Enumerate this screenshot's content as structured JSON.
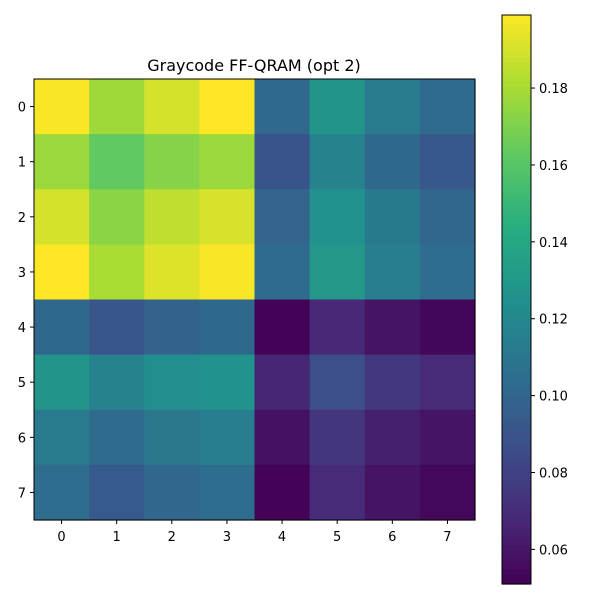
{
  "chart_data": {
    "type": "heatmap",
    "title": "Graycode FF-QRAM (opt 2)",
    "xlabel": "",
    "ylabel": "",
    "x_ticks": [
      "0",
      "1",
      "2",
      "3",
      "4",
      "5",
      "6",
      "7"
    ],
    "y_ticks": [
      "0",
      "1",
      "2",
      "3",
      "4",
      "5",
      "6",
      "7"
    ],
    "colormap": "viridis",
    "vmin": 0.051,
    "vmax": 0.199,
    "colorbar_ticks": [
      0.06,
      0.08,
      0.1,
      0.12,
      0.14,
      0.16,
      0.18
    ],
    "colorbar_tick_labels": [
      "0.06",
      "0.08",
      "0.10",
      "0.12",
      "0.14",
      "0.16",
      "0.18"
    ],
    "grid": false,
    "values": [
      [
        0.198,
        0.178,
        0.19,
        0.199,
        0.102,
        0.128,
        0.112,
        0.103
      ],
      [
        0.177,
        0.163,
        0.172,
        0.177,
        0.09,
        0.117,
        0.101,
        0.092
      ],
      [
        0.19,
        0.173,
        0.185,
        0.191,
        0.099,
        0.126,
        0.111,
        0.1
      ],
      [
        0.199,
        0.18,
        0.192,
        0.198,
        0.103,
        0.13,
        0.114,
        0.104
      ],
      [
        0.101,
        0.091,
        0.098,
        0.101,
        0.052,
        0.068,
        0.059,
        0.053
      ],
      [
        0.128,
        0.117,
        0.124,
        0.127,
        0.067,
        0.087,
        0.075,
        0.069
      ],
      [
        0.112,
        0.103,
        0.11,
        0.114,
        0.058,
        0.074,
        0.064,
        0.059
      ],
      [
        0.104,
        0.093,
        0.1,
        0.104,
        0.052,
        0.069,
        0.059,
        0.054
      ]
    ]
  }
}
